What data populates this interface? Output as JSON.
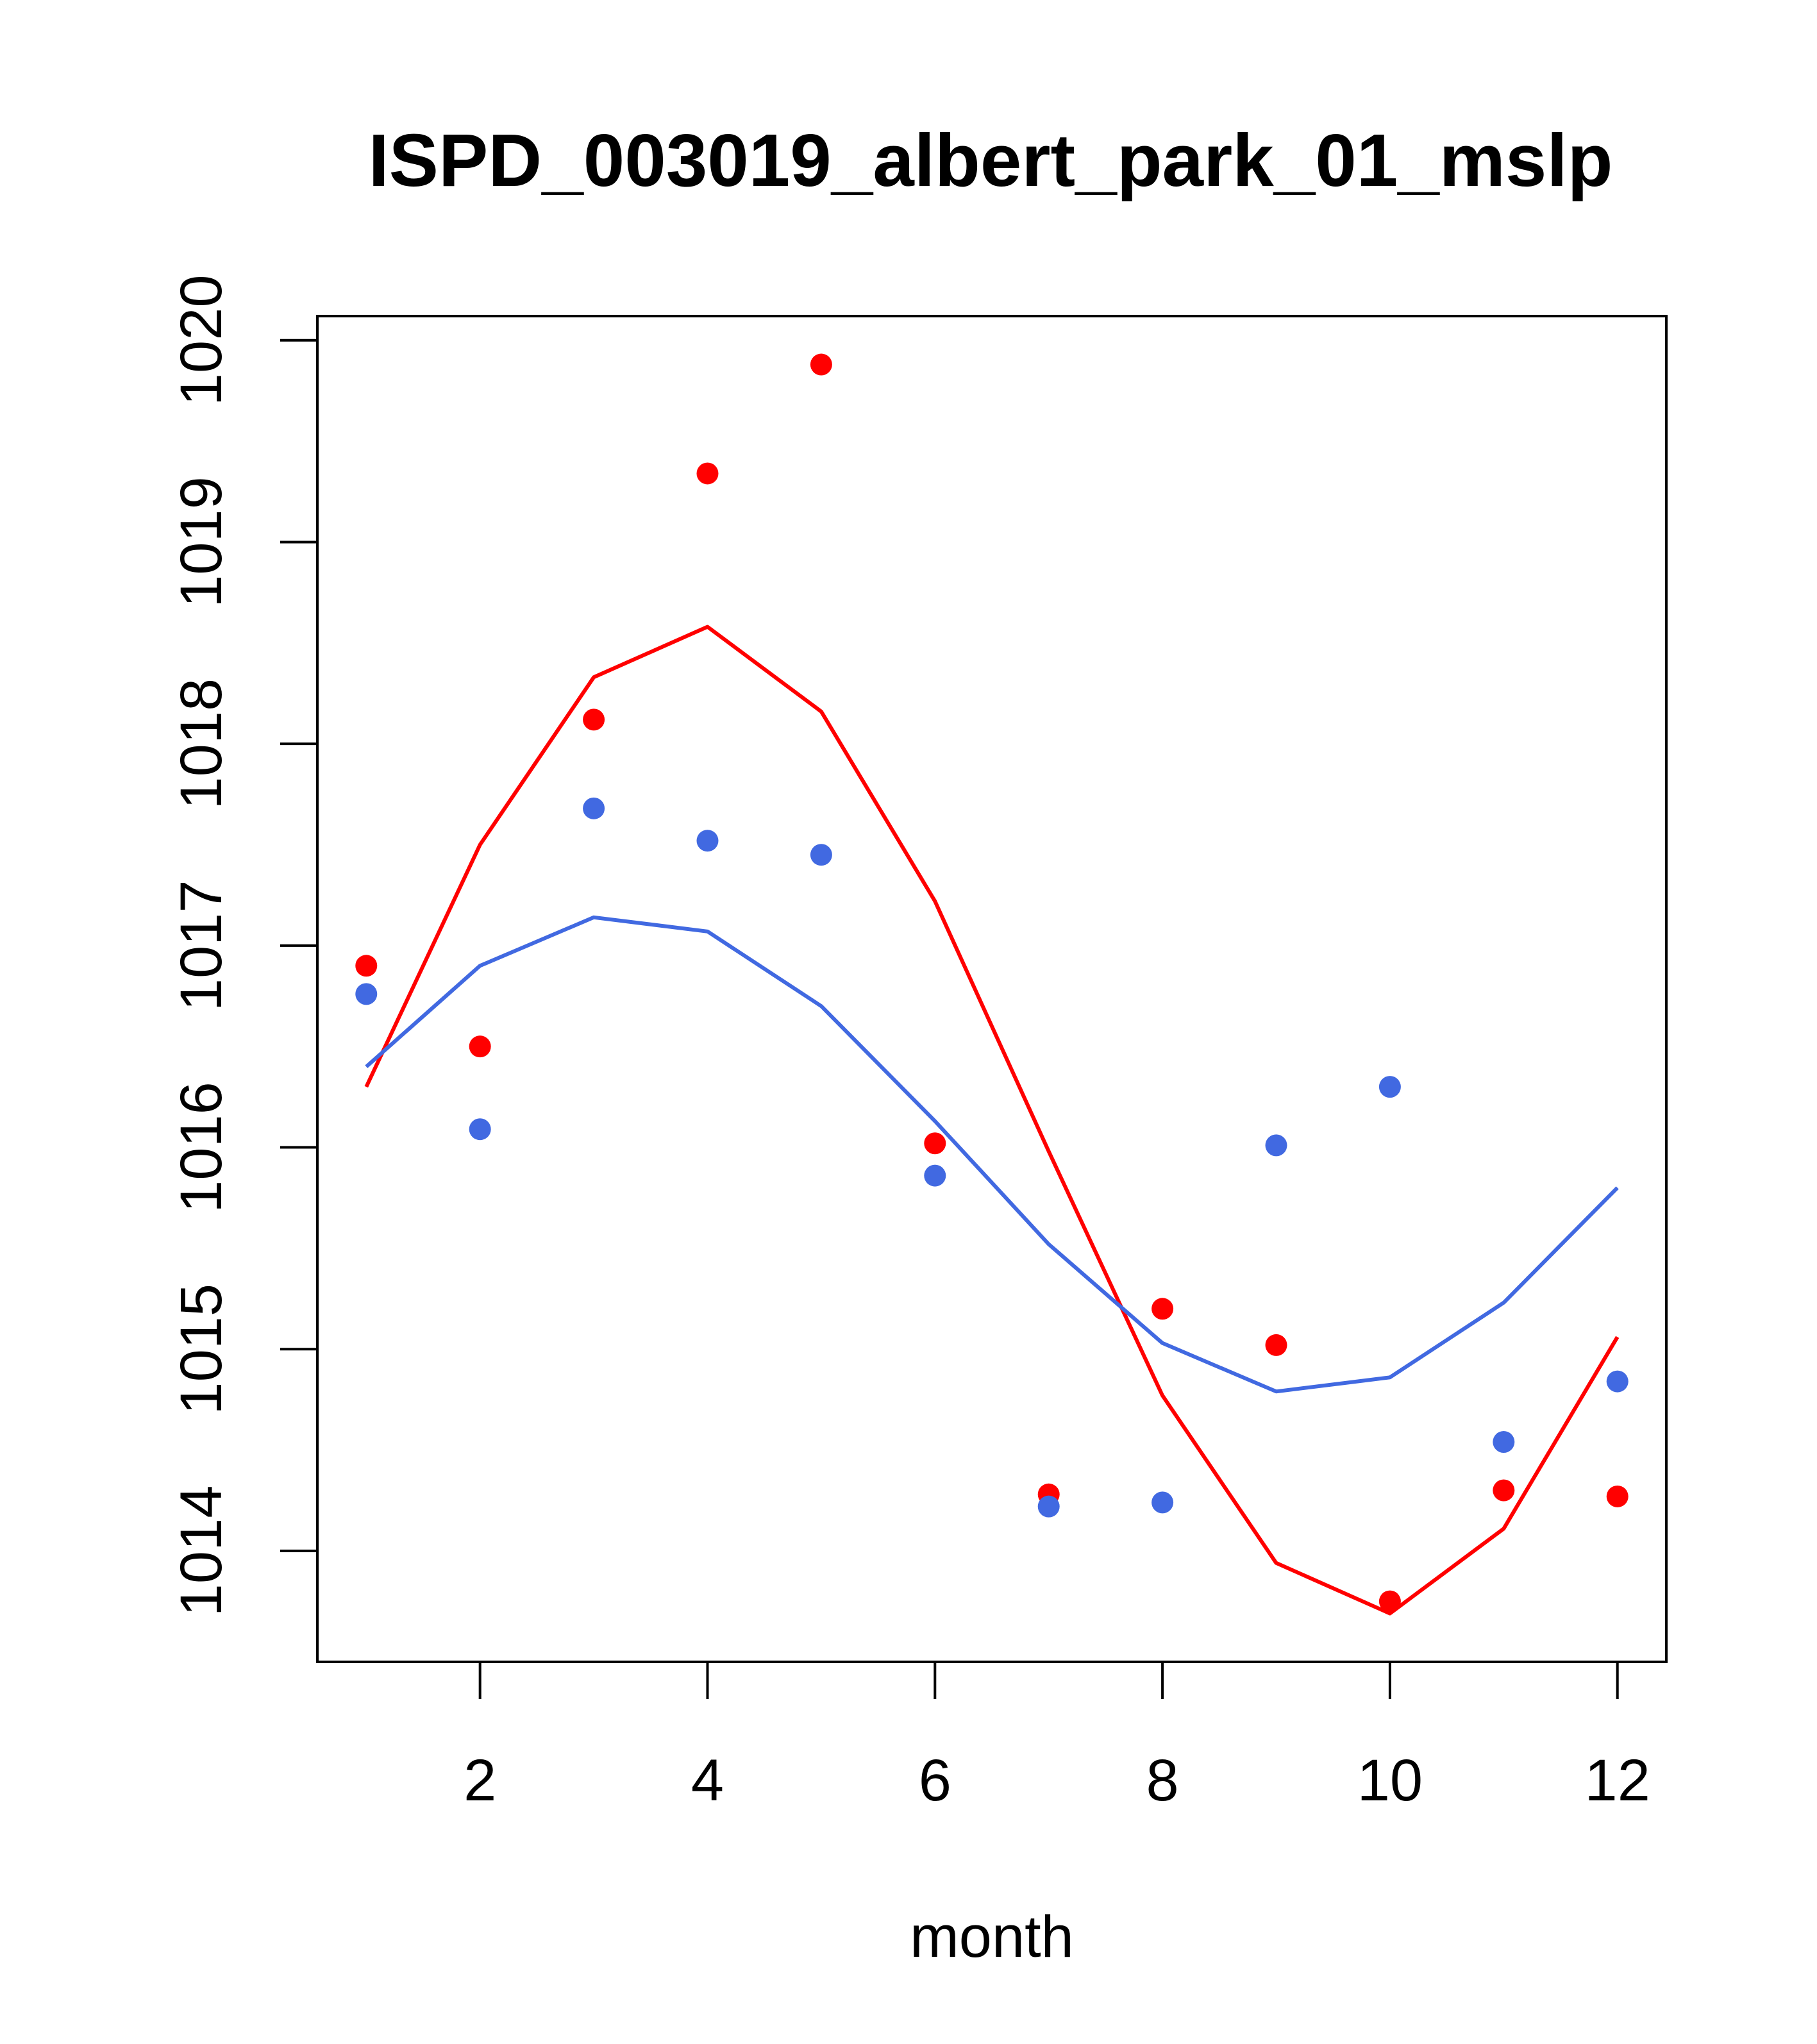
{
  "chart_data": {
    "type": "scatter",
    "title": "ISPD_003019_albert_park_01_mslp",
    "xlabel": "month",
    "ylabel": "",
    "xlim": [
      0.57,
      12.43
    ],
    "ylim": [
      1013.45,
      1020.12
    ],
    "xticks": [
      2,
      4,
      6,
      8,
      10,
      12
    ],
    "yticks": [
      1014,
      1015,
      1016,
      1017,
      1018,
      1019,
      1020
    ],
    "legend": "none",
    "grid": false,
    "series": [
      {
        "name": "red points",
        "kind": "points",
        "color": "#ff0000",
        "x": [
          1,
          2,
          3,
          4,
          5,
          6,
          7,
          8,
          9,
          10,
          11,
          12
        ],
        "y": [
          1016.9,
          1016.5,
          1018.12,
          1019.34,
          1019.88,
          1016.02,
          1014.28,
          1015.2,
          1015.02,
          1013.75,
          1014.3,
          1014.27
        ]
      },
      {
        "name": "blue points",
        "kind": "points",
        "color": "#4169e1",
        "x": [
          1,
          2,
          3,
          4,
          5,
          6,
          7,
          8,
          9,
          10,
          11,
          12
        ],
        "y": [
          1016.76,
          1016.09,
          1017.68,
          1017.52,
          1017.45,
          1015.86,
          1014.22,
          1014.24,
          1016.01,
          1016.3,
          1014.54,
          1014.84
        ]
      },
      {
        "name": "red line",
        "kind": "line",
        "color": "#ff0000",
        "x": [
          1,
          2,
          3,
          4,
          5,
          6,
          7,
          8,
          9,
          10,
          11,
          12
        ],
        "y": [
          1016.3,
          1017.5,
          1018.33,
          1018.58,
          1018.16,
          1017.22,
          1015.98,
          1014.77,
          1013.94,
          1013.69,
          1014.11,
          1015.06
        ]
      },
      {
        "name": "blue line",
        "kind": "line",
        "color": "#4169e1",
        "x": [
          1,
          2,
          3,
          4,
          5,
          6,
          7,
          8,
          9,
          10,
          11,
          12
        ],
        "y": [
          1016.4,
          1016.9,
          1017.14,
          1017.07,
          1016.7,
          1016.13,
          1015.52,
          1015.03,
          1014.79,
          1014.86,
          1015.23,
          1015.8
        ]
      }
    ]
  }
}
